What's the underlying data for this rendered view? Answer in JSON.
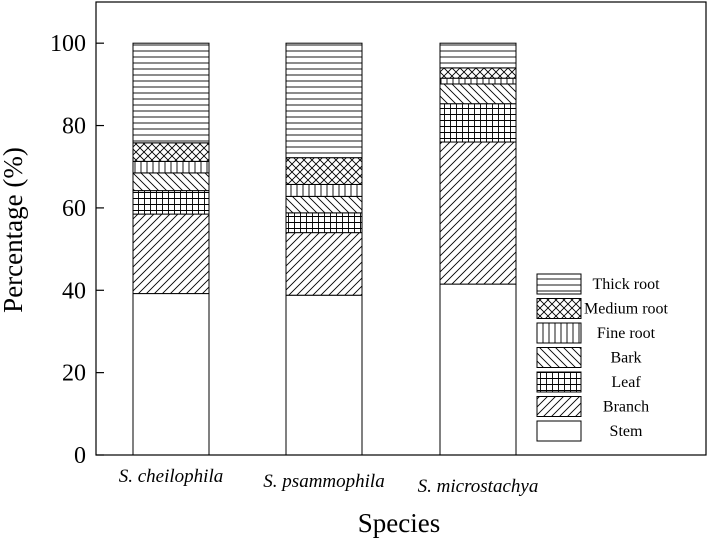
{
  "chart_data": {
    "type": "bar",
    "stacked": true,
    "xlabel": "Species",
    "ylabel": "Percentage (%)",
    "ylim": [
      0,
      110
    ],
    "yticks": [
      0,
      20,
      40,
      60,
      80,
      100
    ],
    "categories": [
      "S. cheilophila",
      "S. psammophila",
      "S. microstachya"
    ],
    "series": [
      {
        "name": "Stem",
        "pattern": "none",
        "values": [
          39.2,
          38.8,
          41.5
        ]
      },
      {
        "name": "Branch",
        "pattern": "diag-right",
        "values": [
          19.3,
          15.2,
          34.5
        ]
      },
      {
        "name": "Leaf",
        "pattern": "grid",
        "values": [
          5.7,
          4.8,
          9.3
        ]
      },
      {
        "name": "Bark",
        "pattern": "diag-left",
        "values": [
          4.3,
          4.0,
          4.8
        ]
      },
      {
        "name": "Fine root",
        "pattern": "vertical",
        "values": [
          2.8,
          2.9,
          1.4
        ]
      },
      {
        "name": "Medium root",
        "pattern": "crosshatch",
        "values": [
          4.5,
          6.5,
          2.5
        ]
      },
      {
        "name": "Thick root",
        "pattern": "horizontal",
        "values": [
          24.2,
          27.8,
          6.0
        ]
      }
    ],
    "legend": {
      "position": "bottom-right",
      "order": [
        "Thick root",
        "Medium root",
        "Fine root",
        "Bark",
        "Leaf",
        "Branch",
        "Stem"
      ]
    },
    "grid": false,
    "colors": {
      "fill": "#ffffff",
      "stroke": "#000000"
    }
  }
}
